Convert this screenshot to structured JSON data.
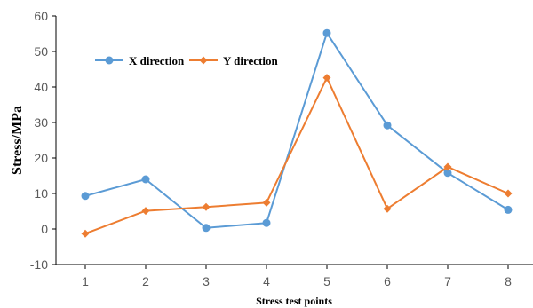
{
  "chart_data": {
    "type": "line",
    "xlabel": "Stress test points",
    "ylabel": "Stress/MPa",
    "categories": [
      "1",
      "2",
      "3",
      "4",
      "5",
      "6",
      "7",
      "8"
    ],
    "ylim": [
      -10,
      60
    ],
    "yticks": [
      -10,
      0,
      10,
      20,
      30,
      40,
      50,
      60
    ],
    "grid": false,
    "legend_position": "top-left",
    "series": [
      {
        "name": "X direction",
        "color": "#5B9BD5",
        "marker": "circle",
        "values": [
          9.3,
          14.0,
          0.3,
          1.7,
          55.2,
          29.2,
          15.8,
          5.4
        ]
      },
      {
        "name": "Y direction",
        "color": "#ED7D31",
        "marker": "diamond",
        "values": [
          -1.3,
          5.1,
          6.2,
          7.4,
          42.6,
          5.7,
          17.5,
          10.0
        ]
      }
    ]
  }
}
